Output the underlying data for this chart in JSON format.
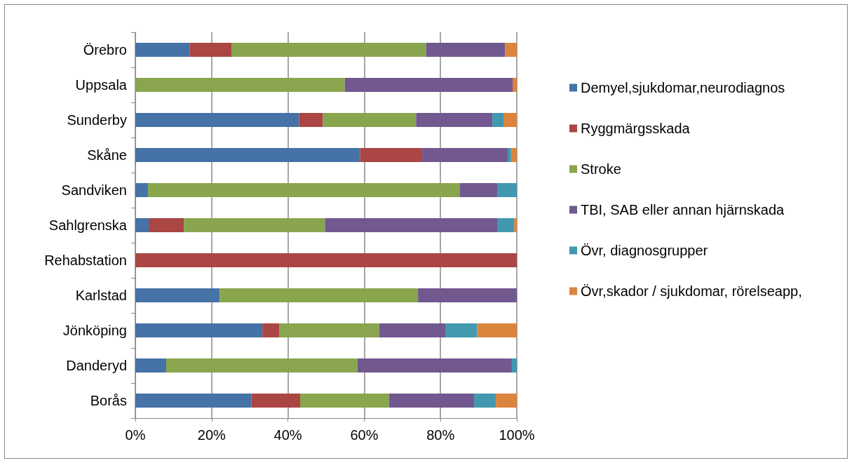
{
  "chart_data": {
    "type": "bar",
    "orientation": "horizontal",
    "stacked": true,
    "categories": [
      "Örebro",
      "Uppsala",
      "Sunderby",
      "Skåne",
      "Sandviken",
      "Sahlgrenska",
      "Rehabstation",
      "Karlstad",
      "Jönköping",
      "Danderyd",
      "Borås"
    ],
    "series": [
      {
        "name": "Demyel,sjukdomar,neurodiagnos",
        "color": "#4572a7",
        "values": [
          14.2,
          0,
          42.9,
          58.9,
          3.3,
          3.5,
          0,
          22.1,
          33.3,
          8.1,
          30.4
        ]
      },
      {
        "name": "Ryggmärgsskada",
        "color": "#aa4643",
        "values": [
          11.1,
          0,
          6.3,
          16.3,
          0,
          9.2,
          100,
          0,
          4.4,
          0,
          12.8
        ]
      },
      {
        "name": "Stroke",
        "color": "#89a54e",
        "values": [
          50.9,
          54.9,
          24.4,
          0,
          81.7,
          37.0,
          0,
          52.0,
          26.2,
          50.1,
          23.3
        ]
      },
      {
        "name": "TBI, SAB eller annan hjärnskada",
        "color": "#71588f",
        "values": [
          20.7,
          44.0,
          20.0,
          22.4,
          10.0,
          45.3,
          0,
          25.9,
          17.5,
          40.5,
          22.3
        ]
      },
      {
        "name": "Övr, diagnosgrupper",
        "color": "#4198af",
        "values": [
          0,
          0,
          2.9,
          0.9,
          5.0,
          4.3,
          0,
          0,
          8.2,
          1.3,
          5.7
        ]
      },
      {
        "name": "Övr,skador / sjukdomar, rörelseapp,",
        "color": "#db843d",
        "values": [
          3.1,
          1.1,
          3.5,
          1.5,
          0,
          0.7,
          0,
          0,
          10.4,
          0,
          5.5
        ]
      }
    ],
    "xlim": [
      0,
      100
    ],
    "xticks": [
      {
        "value": 0,
        "label": "0%"
      },
      {
        "value": 20,
        "label": "20%"
      },
      {
        "value": 40,
        "label": "40%"
      },
      {
        "value": 60,
        "label": "60%"
      },
      {
        "value": 80,
        "label": "80%"
      },
      {
        "value": 100,
        "label": "100%"
      }
    ],
    "grid": "x",
    "legend": "right"
  }
}
